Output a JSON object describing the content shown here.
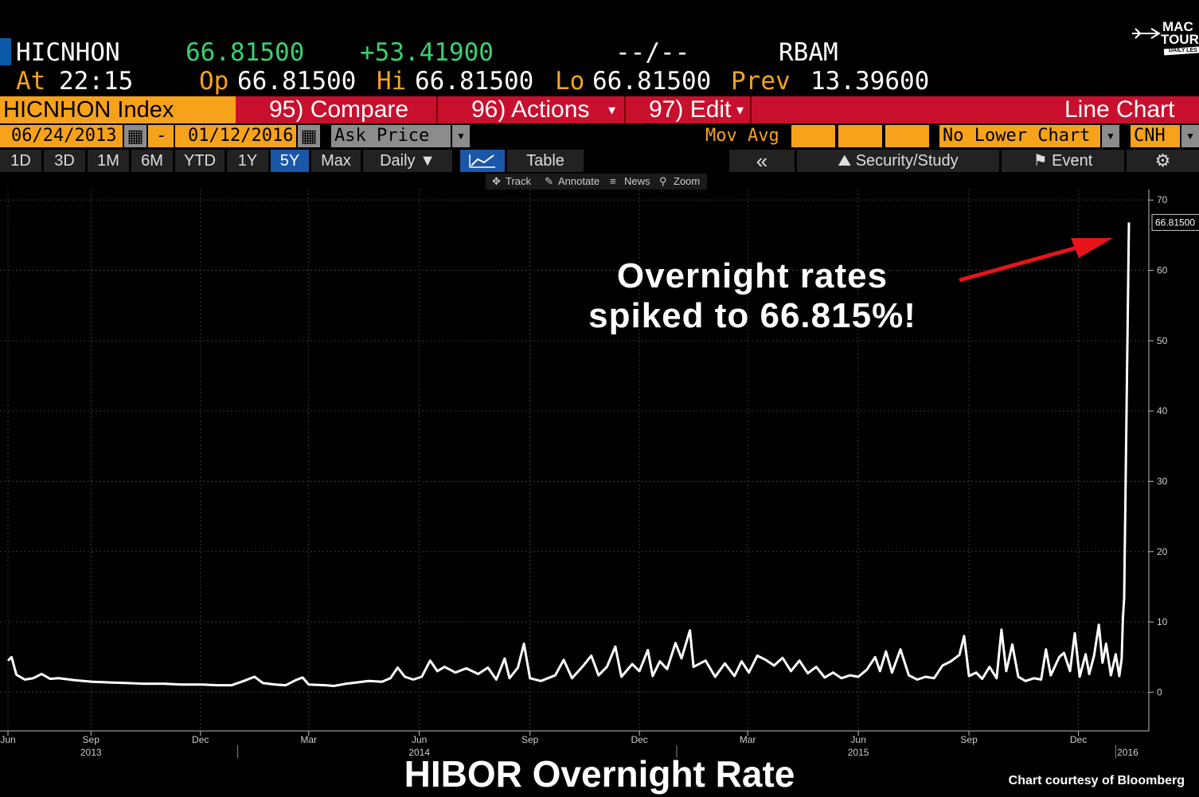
{
  "quote": {
    "ticker": "HICNHON",
    "last": "66.81500",
    "change": "+53.41900",
    "bidask": "--/--",
    "source": "RBAM",
    "at_label": "At",
    "time": "22:15",
    "op_label": "Op",
    "op": "66.81500",
    "hi_label": "Hi",
    "hi": "66.81500",
    "lo_label": "Lo",
    "lo": "66.81500",
    "prev_label": "Prev",
    "prev": "13.39600"
  },
  "menu": {
    "security": "HICNHON Index",
    "compare": "95) Compare",
    "actions": "96) Actions",
    "actions_arrow": "▾",
    "edit": "97) Edit",
    "edit_arrow": "▾",
    "chart_type": "Line Chart"
  },
  "range": {
    "start": "06/24/2013",
    "dash": "-",
    "end": "01/12/2016",
    "field": "Ask Price",
    "mov_avg": "Mov Avg",
    "lower_chart": "No Lower Chart",
    "currency": "CNH"
  },
  "periods": [
    "1D",
    "3D",
    "1M",
    "6M",
    "YTD",
    "1Y",
    "5Y",
    "Max"
  ],
  "selected_period": "5Y",
  "toolbar": {
    "frequency": "Daily ▼",
    "table": "Table",
    "back": "«",
    "security_study": "Security/Study",
    "event": "Event",
    "settings_icon": "gear-icon"
  },
  "tools": {
    "track": "Track",
    "annotate": "Annotate",
    "news": "News",
    "zoom": "Zoom"
  },
  "logo": {
    "line1": "MAC",
    "line2": "TOUR",
    "tag": "DAILY LES"
  },
  "annotation": {
    "line1": "Overnight rates",
    "line2": "spiked to 66.815%!",
    "arrow_color": "#e8141b"
  },
  "footer": {
    "title": "HIBOR Overnight Rate",
    "credit": "Chart courtesy of Bloomberg"
  },
  "colors": {
    "accent_orange": "#f7a21b",
    "menu_red": "#c8102e",
    "up_green": "#3bd16f",
    "selected_blue": "#1a57a8"
  },
  "chart_data": {
    "type": "line",
    "y_ticks": [
      0,
      10,
      20,
      30,
      40,
      50,
      60,
      70
    ],
    "ylim": [
      -5.5,
      71.5
    ],
    "last_value_label": "66.81500",
    "x_month_ticks": [
      {
        "label": "Jun",
        "date": "2013-06-24"
      },
      {
        "label": "Sep",
        "date": "2013-09-01"
      },
      {
        "label": "Dec",
        "date": "2013-12-01"
      },
      {
        "label": "Mar",
        "date": "2014-03-01"
      },
      {
        "label": "Jun",
        "date": "2014-06-01"
      },
      {
        "label": "Sep",
        "date": "2014-09-01"
      },
      {
        "label": "Dec",
        "date": "2014-12-01"
      },
      {
        "label": "Mar",
        "date": "2015-03-01"
      },
      {
        "label": "Jun",
        "date": "2015-06-01"
      },
      {
        "label": "Sep",
        "date": "2015-09-01"
      },
      {
        "label": "Dec",
        "date": "2015-12-01"
      }
    ],
    "x_year_labels": [
      {
        "label": "2013",
        "date": "2013-09-01"
      },
      {
        "label": "2014",
        "date": "2014-06-01"
      },
      {
        "label": "2015",
        "date": "2015-06-01"
      },
      {
        "label": "2016",
        "date": "2016-01-07"
      }
    ],
    "series": [
      {
        "points": [
          [
            "2013-06-24",
            4.5
          ],
          [
            "2013-06-27",
            5.0
          ],
          [
            "2013-07-01",
            2.5
          ],
          [
            "2013-07-08",
            1.8
          ],
          [
            "2013-07-15",
            2.0
          ],
          [
            "2013-07-22",
            2.6
          ],
          [
            "2013-07-29",
            1.9
          ],
          [
            "2013-08-05",
            2.0
          ],
          [
            "2013-08-19",
            1.7
          ],
          [
            "2013-09-02",
            1.5
          ],
          [
            "2013-09-16",
            1.4
          ],
          [
            "2013-10-01",
            1.3
          ],
          [
            "2013-10-15",
            1.2
          ],
          [
            "2013-11-01",
            1.2
          ],
          [
            "2013-11-15",
            1.1
          ],
          [
            "2013-12-01",
            1.1
          ],
          [
            "2013-12-15",
            1.0
          ],
          [
            "2013-12-27",
            1.0
          ],
          [
            "2014-01-06",
            1.6
          ],
          [
            "2014-01-15",
            2.2
          ],
          [
            "2014-01-22",
            1.3
          ],
          [
            "2014-02-01",
            1.1
          ],
          [
            "2014-02-10",
            1.0
          ],
          [
            "2014-02-18",
            1.7
          ],
          [
            "2014-02-24",
            2.1
          ],
          [
            "2014-03-01",
            1.1
          ],
          [
            "2014-03-15",
            1.0
          ],
          [
            "2014-03-22",
            0.9
          ],
          [
            "2014-04-01",
            1.2
          ],
          [
            "2014-04-10",
            1.4
          ],
          [
            "2014-04-20",
            1.6
          ],
          [
            "2014-05-01",
            1.5
          ],
          [
            "2014-05-08",
            2.0
          ],
          [
            "2014-05-14",
            3.5
          ],
          [
            "2014-05-20",
            2.2
          ],
          [
            "2014-05-27",
            1.8
          ],
          [
            "2014-06-03",
            2.2
          ],
          [
            "2014-06-10",
            4.5
          ],
          [
            "2014-06-16",
            3.0
          ],
          [
            "2014-06-22",
            3.6
          ],
          [
            "2014-07-01",
            2.8
          ],
          [
            "2014-07-10",
            3.4
          ],
          [
            "2014-07-20",
            2.6
          ],
          [
            "2014-07-28",
            3.5
          ],
          [
            "2014-08-04",
            1.8
          ],
          [
            "2014-08-11",
            4.8
          ],
          [
            "2014-08-15",
            2.0
          ],
          [
            "2014-08-22",
            3.5
          ],
          [
            "2014-08-27",
            6.9
          ],
          [
            "2014-09-01",
            2.0
          ],
          [
            "2014-09-10",
            1.6
          ],
          [
            "2014-09-22",
            2.4
          ],
          [
            "2014-09-29",
            4.6
          ],
          [
            "2014-10-06",
            2.0
          ],
          [
            "2014-10-15",
            3.7
          ],
          [
            "2014-10-22",
            5.2
          ],
          [
            "2014-10-28",
            2.4
          ],
          [
            "2014-11-04",
            3.6
          ],
          [
            "2014-11-11",
            6.5
          ],
          [
            "2014-11-16",
            2.2
          ],
          [
            "2014-11-25",
            4.0
          ],
          [
            "2014-12-01",
            3.0
          ],
          [
            "2014-12-08",
            6.0
          ],
          [
            "2014-12-12",
            2.3
          ],
          [
            "2014-12-18",
            4.4
          ],
          [
            "2014-12-24",
            3.3
          ],
          [
            "2014-12-31",
            7.0
          ],
          [
            "2015-01-05",
            4.8
          ],
          [
            "2015-01-12",
            8.8
          ],
          [
            "2015-01-15",
            3.6
          ],
          [
            "2015-01-25",
            4.5
          ],
          [
            "2015-02-02",
            2.2
          ],
          [
            "2015-02-10",
            4.1
          ],
          [
            "2015-02-18",
            2.3
          ],
          [
            "2015-02-24",
            4.4
          ],
          [
            "2015-03-02",
            2.8
          ],
          [
            "2015-03-09",
            5.2
          ],
          [
            "2015-03-16",
            4.6
          ],
          [
            "2015-03-23",
            3.8
          ],
          [
            "2015-03-30",
            4.9
          ],
          [
            "2015-04-06",
            3.0
          ],
          [
            "2015-04-13",
            4.5
          ],
          [
            "2015-04-20",
            2.7
          ],
          [
            "2015-04-27",
            3.6
          ],
          [
            "2015-05-04",
            2.1
          ],
          [
            "2015-05-11",
            2.8
          ],
          [
            "2015-05-18",
            2.0
          ],
          [
            "2015-05-25",
            2.4
          ],
          [
            "2015-06-01",
            2.2
          ],
          [
            "2015-06-08",
            3.2
          ],
          [
            "2015-06-15",
            5.0
          ],
          [
            "2015-06-19",
            3.0
          ],
          [
            "2015-06-24",
            5.8
          ],
          [
            "2015-06-29",
            2.8
          ],
          [
            "2015-07-06",
            6.1
          ],
          [
            "2015-07-13",
            2.4
          ],
          [
            "2015-07-20",
            1.8
          ],
          [
            "2015-07-27",
            2.2
          ],
          [
            "2015-08-03",
            2.0
          ],
          [
            "2015-08-10",
            3.8
          ],
          [
            "2015-08-17",
            4.4
          ],
          [
            "2015-08-24",
            5.3
          ],
          [
            "2015-08-28",
            8.0
          ],
          [
            "2015-09-01",
            2.3
          ],
          [
            "2015-09-07",
            2.8
          ],
          [
            "2015-09-12",
            1.9
          ],
          [
            "2015-09-18",
            3.6
          ],
          [
            "2015-09-24",
            2.0
          ],
          [
            "2015-09-28",
            8.9
          ],
          [
            "2015-10-02",
            3.0
          ],
          [
            "2015-10-07",
            6.8
          ],
          [
            "2015-10-12",
            2.2
          ],
          [
            "2015-10-18",
            1.6
          ],
          [
            "2015-10-25",
            2.0
          ],
          [
            "2015-10-31",
            1.8
          ],
          [
            "2015-11-04",
            6.1
          ],
          [
            "2015-11-08",
            2.4
          ],
          [
            "2015-11-15",
            5.0
          ],
          [
            "2015-11-19",
            5.6
          ],
          [
            "2015-11-24",
            3.0
          ],
          [
            "2015-11-28",
            8.4
          ],
          [
            "2015-12-02",
            2.2
          ],
          [
            "2015-12-07",
            5.4
          ],
          [
            "2015-12-10",
            2.6
          ],
          [
            "2015-12-14",
            5.2
          ],
          [
            "2015-12-18",
            9.6
          ],
          [
            "2015-12-21",
            4.2
          ],
          [
            "2015-12-24",
            6.9
          ],
          [
            "2015-12-28",
            2.4
          ],
          [
            "2016-01-01",
            5.4
          ],
          [
            "2016-01-04",
            2.3
          ],
          [
            "2016-01-06",
            4.8
          ],
          [
            "2016-01-07",
            10.5
          ],
          [
            "2016-01-08",
            13.4
          ],
          [
            "2016-01-12",
            66.815
          ]
        ]
      }
    ]
  }
}
